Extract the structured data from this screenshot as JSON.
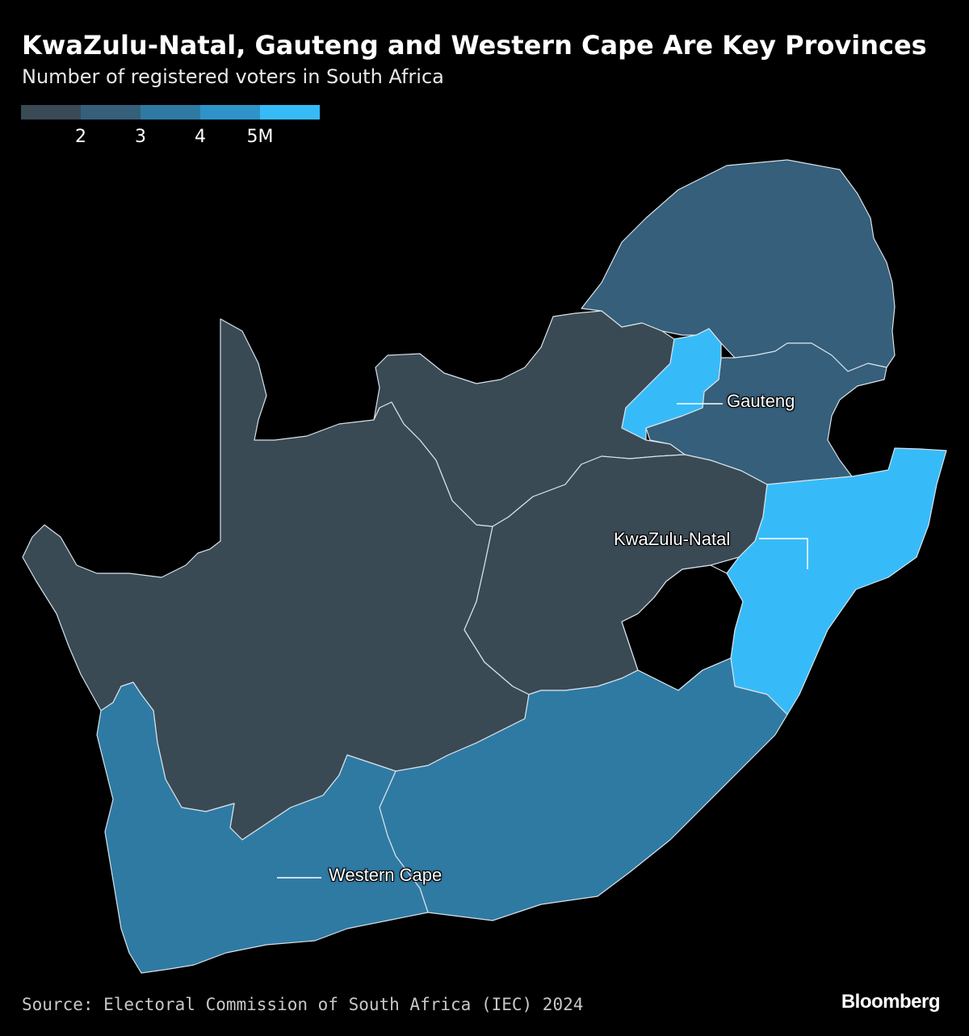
{
  "title": "KwaZulu-Natal, Gauteng and Western Cape Are Key Provinces",
  "subtitle": "Number of registered voters in South Africa",
  "legend": {
    "colors": [
      "#3a4a55",
      "#355f7a",
      "#2f7aa3",
      "#2e93c8",
      "#37bbf8"
    ],
    "ticks": [
      "2",
      "3",
      "4",
      "5M"
    ]
  },
  "labels": {
    "gauteng": "Gauteng",
    "kwazulu_natal": "KwaZulu-Natal",
    "western_cape": "Western Cape"
  },
  "colors": {
    "background": "#000000",
    "border": "#d8e2ea",
    "lesotho": "#000000"
  },
  "source": "Source: Electoral Commission of South Africa (IEC) 2024",
  "brand": "Bloomberg"
}
